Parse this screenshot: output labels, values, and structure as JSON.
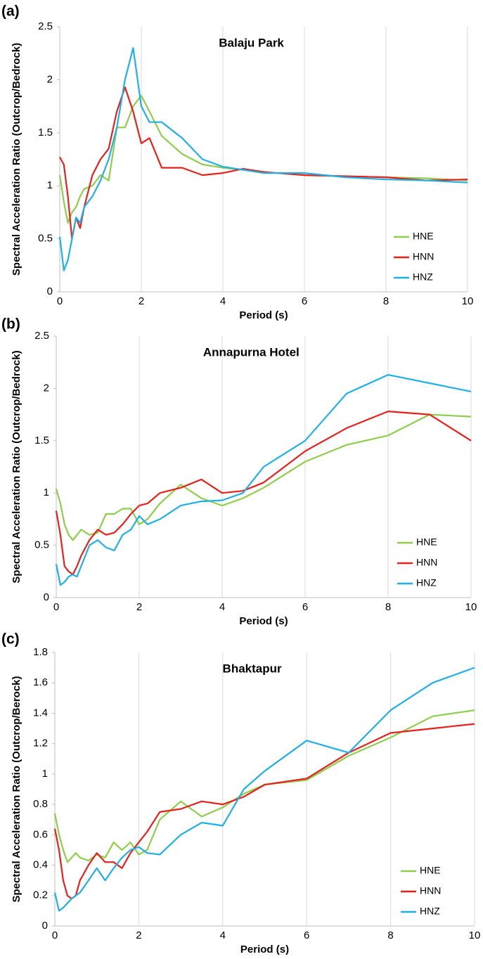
{
  "chart_data": [
    {
      "type": "line",
      "panel_label": "(a)",
      "title": "Balaju Park",
      "x_label": "Period (s)",
      "y_label": "Spectral Acceleration Ratio (Outcrop/Bedrock)",
      "x": [
        0,
        0.1,
        0.2,
        0.3,
        0.4,
        0.5,
        0.6,
        0.8,
        1.0,
        1.2,
        1.4,
        1.6,
        1.8,
        2.0,
        2.2,
        2.5,
        3,
        3.5,
        4,
        4.5,
        5,
        6,
        7,
        8,
        9,
        10
      ],
      "series": [
        {
          "name": "HNE",
          "color": "#8fce4a",
          "values": [
            1.1,
            0.85,
            0.65,
            0.75,
            0.8,
            0.9,
            0.97,
            1.0,
            1.1,
            1.05,
            1.55,
            1.55,
            1.75,
            1.85,
            1.7,
            1.47,
            1.3,
            1.2,
            1.17,
            1.15,
            1.13,
            1.1,
            1.09,
            1.08,
            1.07,
            1.05
          ]
        },
        {
          "name": "HNN",
          "color": "#e8201c",
          "values": [
            1.27,
            1.2,
            0.9,
            0.5,
            0.7,
            0.6,
            0.8,
            1.1,
            1.25,
            1.35,
            1.7,
            1.93,
            1.7,
            1.4,
            1.45,
            1.17,
            1.17,
            1.1,
            1.12,
            1.16,
            1.13,
            1.1,
            1.09,
            1.08,
            1.05,
            1.06
          ]
        },
        {
          "name": "HNZ",
          "color": "#1eb0e6",
          "values": [
            0.52,
            0.2,
            0.3,
            0.5,
            0.7,
            0.65,
            0.8,
            0.9,
            1.05,
            1.25,
            1.55,
            2.0,
            2.3,
            1.75,
            1.6,
            1.6,
            1.45,
            1.25,
            1.18,
            1.15,
            1.12,
            1.12,
            1.08,
            1.06,
            1.05,
            1.03
          ]
        }
      ],
      "xlim": [
        0,
        10
      ],
      "xticks": [
        0,
        2,
        4,
        6,
        8,
        10
      ],
      "ylim": [
        0,
        2.5
      ],
      "yticks": [
        0,
        0.5,
        1,
        1.5,
        2,
        2.5
      ],
      "grid": "x",
      "legend": "lower right"
    },
    {
      "type": "line",
      "panel_label": "(b)",
      "title": "Annapurna Hotel",
      "x_label": "Period (s)",
      "y_label": "Spectral Acceleration Ratio (Outcrop/Bedrock)",
      "x": [
        0,
        0.1,
        0.2,
        0.3,
        0.4,
        0.5,
        0.6,
        0.8,
        1.0,
        1.2,
        1.4,
        1.6,
        1.8,
        2.0,
        2.2,
        2.5,
        3,
        3.5,
        4,
        4.5,
        5,
        6,
        7,
        8,
        9,
        10
      ],
      "series": [
        {
          "name": "HNE",
          "color": "#8fce4a",
          "values": [
            1.04,
            0.9,
            0.7,
            0.6,
            0.55,
            0.6,
            0.65,
            0.6,
            0.62,
            0.8,
            0.8,
            0.85,
            0.85,
            0.7,
            0.75,
            0.9,
            1.08,
            0.95,
            0.88,
            0.95,
            1.05,
            1.3,
            1.46,
            1.55,
            1.75,
            1.73
          ]
        },
        {
          "name": "HNN",
          "color": "#e8201c",
          "values": [
            0.83,
            0.6,
            0.3,
            0.25,
            0.22,
            0.3,
            0.4,
            0.55,
            0.65,
            0.6,
            0.62,
            0.7,
            0.8,
            0.88,
            0.9,
            1.0,
            1.05,
            1.13,
            1.0,
            1.02,
            1.1,
            1.4,
            1.62,
            1.78,
            1.75,
            1.5
          ]
        },
        {
          "name": "HNZ",
          "color": "#1eb0e6",
          "values": [
            0.32,
            0.12,
            0.15,
            0.2,
            0.22,
            0.2,
            0.3,
            0.5,
            0.55,
            0.48,
            0.45,
            0.6,
            0.65,
            0.78,
            0.7,
            0.75,
            0.88,
            0.92,
            0.93,
            1.0,
            1.25,
            1.5,
            1.95,
            2.13,
            2.05,
            1.97
          ]
        }
      ],
      "xlim": [
        0,
        10
      ],
      "xticks": [
        0,
        2,
        4,
        6,
        8,
        10
      ],
      "ylim": [
        0,
        2.5
      ],
      "yticks": [
        0,
        0.5,
        1,
        1.5,
        2,
        2.5
      ],
      "grid": "x",
      "legend": "lower right"
    },
    {
      "type": "line",
      "panel_label": "(c)",
      "title": "Bhaktapur",
      "x_label": "Period (s)",
      "y_label": "Spectral Acceleration Ratio (Outcrop/Berock)",
      "x": [
        0,
        0.1,
        0.2,
        0.3,
        0.4,
        0.5,
        0.6,
        0.8,
        1.0,
        1.2,
        1.4,
        1.6,
        1.8,
        2.0,
        2.2,
        2.5,
        3,
        3.5,
        4,
        4.5,
        5,
        6,
        7,
        8,
        9,
        10
      ],
      "series": [
        {
          "name": "HNE",
          "color": "#8fce4a",
          "values": [
            0.74,
            0.6,
            0.5,
            0.42,
            0.45,
            0.48,
            0.45,
            0.43,
            0.47,
            0.45,
            0.55,
            0.5,
            0.55,
            0.47,
            0.5,
            0.7,
            0.82,
            0.72,
            0.78,
            0.87,
            0.93,
            0.96,
            1.12,
            1.24,
            1.38,
            1.42
          ]
        },
        {
          "name": "HNN",
          "color": "#e8201c",
          "values": [
            0.64,
            0.5,
            0.3,
            0.2,
            0.18,
            0.2,
            0.3,
            0.4,
            0.48,
            0.42,
            0.42,
            0.38,
            0.48,
            0.55,
            0.62,
            0.75,
            0.77,
            0.82,
            0.8,
            0.85,
            0.93,
            0.97,
            1.14,
            1.27,
            1.3,
            1.33
          ]
        },
        {
          "name": "HNZ",
          "color": "#1eb0e6",
          "values": [
            0.22,
            0.1,
            0.12,
            0.15,
            0.18,
            0.2,
            0.22,
            0.3,
            0.38,
            0.3,
            0.38,
            0.45,
            0.5,
            0.52,
            0.48,
            0.47,
            0.6,
            0.68,
            0.66,
            0.9,
            1.02,
            1.22,
            1.14,
            1.42,
            1.6,
            1.7
          ]
        }
      ],
      "xlim": [
        0,
        10
      ],
      "xticks": [
        0,
        2,
        4,
        6,
        8,
        10
      ],
      "ylim": [
        0,
        1.8
      ],
      "yticks": [
        0,
        0.2,
        0.4,
        0.6,
        0.8,
        1,
        1.2,
        1.4,
        1.6,
        1.8
      ],
      "grid": "x",
      "legend": "lower right"
    }
  ]
}
